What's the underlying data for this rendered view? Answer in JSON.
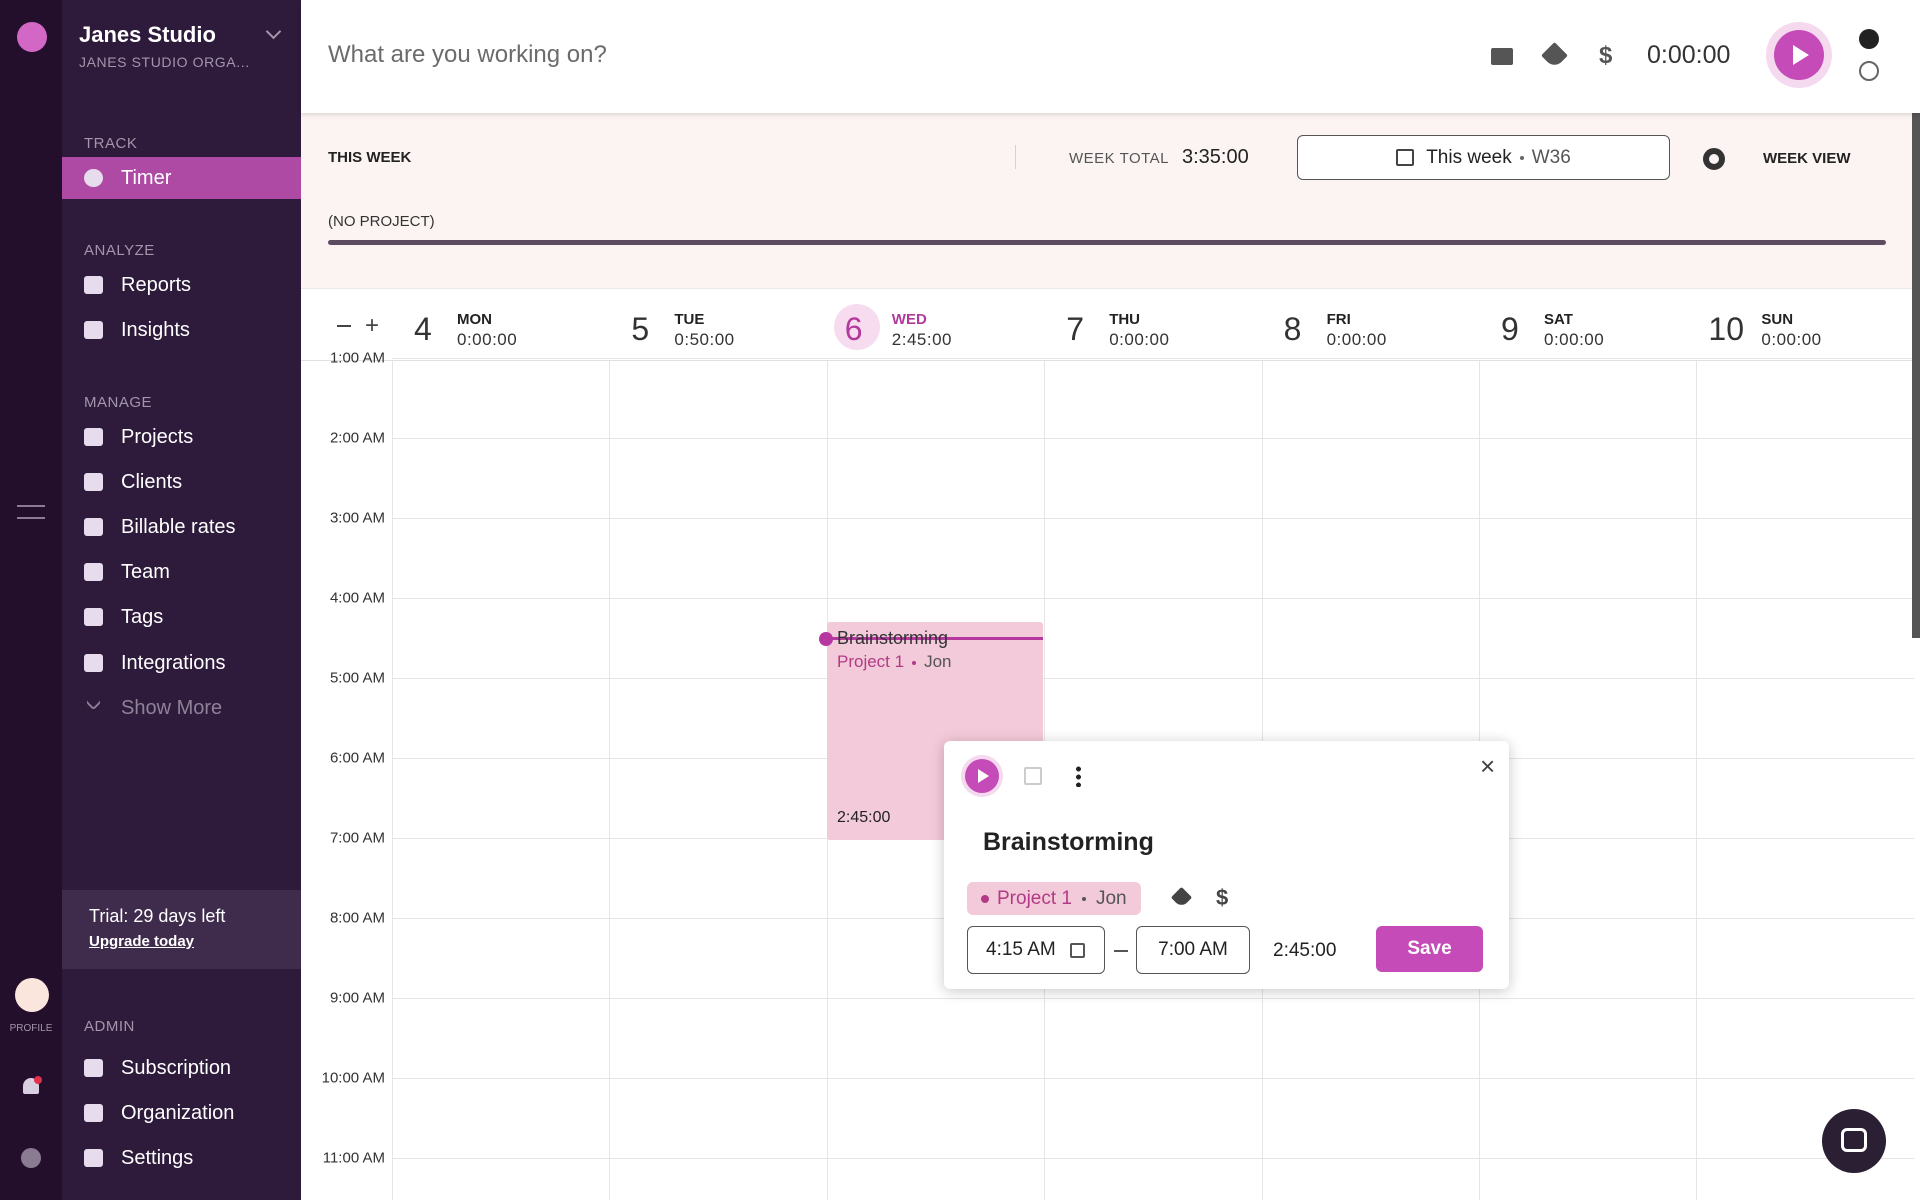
{
  "workspace": {
    "name": "Janes Studio",
    "org": "JANES STUDIO ORGA..."
  },
  "rail": {
    "profile": "PROFILE"
  },
  "nav": [
    {
      "section": "TRACK",
      "items": [
        "Timer"
      ]
    },
    {
      "section": "ANALYZE",
      "items": [
        "Reports",
        "Insights"
      ]
    },
    {
      "section": "MANAGE",
      "items": [
        "Projects",
        "Clients",
        "Billable rates",
        "Team",
        "Tags",
        "Integrations",
        "Show More"
      ]
    }
  ],
  "trial": {
    "text": "Trial: 29 days left",
    "link": "Upgrade today"
  },
  "admin": {
    "section": "ADMIN",
    "items": [
      "Subscription",
      "Organization",
      "Settings"
    ]
  },
  "timer_bar": {
    "placeholder": "What are you working on?",
    "duration": "0:00:00"
  },
  "week": {
    "label": "THIS WEEK",
    "total_label": "WEEK TOTAL",
    "total": "3:35:00",
    "range": "This week",
    "week_number": "W36",
    "view": "WEEK VIEW",
    "project": "(NO PROJECT)"
  },
  "days": [
    {
      "date": "4",
      "name": "MON",
      "total": "0:00:00"
    },
    {
      "date": "5",
      "name": "TUE",
      "total": "0:50:00"
    },
    {
      "date": "6",
      "name": "WED",
      "total": "2:45:00"
    },
    {
      "date": "7",
      "name": "THU",
      "total": "0:00:00"
    },
    {
      "date": "8",
      "name": "FRI",
      "total": "0:00:00"
    },
    {
      "date": "9",
      "name": "SAT",
      "total": "0:00:00"
    },
    {
      "date": "10",
      "name": "SUN",
      "total": "0:00:00"
    }
  ],
  "hours": [
    "1:00 AM",
    "2:00 AM",
    "3:00 AM",
    "4:00 AM",
    "5:00 AM",
    "6:00 AM",
    "7:00 AM",
    "8:00 AM",
    "9:00 AM",
    "10:00 AM",
    "11:00 AM"
  ],
  "event": {
    "title": "Brainstorming",
    "project": "Project 1",
    "client": "Jon",
    "duration": "2:45:00"
  },
  "popup": {
    "title": "Brainstorming",
    "project": "Project 1",
    "client": "Jon",
    "start": "4:15 AM",
    "end": "7:00 AM",
    "duration": "2:45:00",
    "save": "Save"
  }
}
